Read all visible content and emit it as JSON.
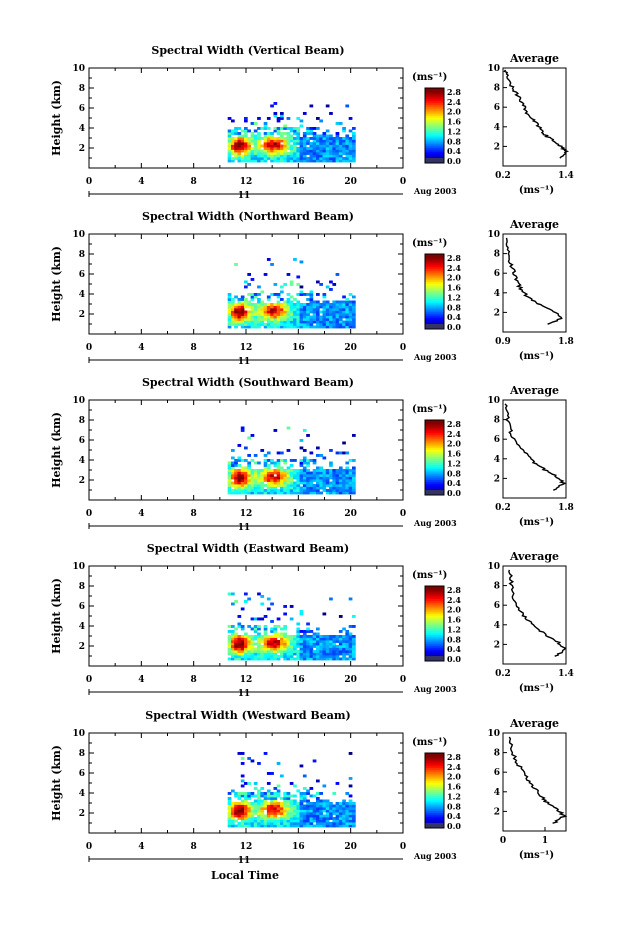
{
  "x_label": "Local Time",
  "date_label": "Aug 2003",
  "day_label": "11",
  "time_ticks": [
    "0",
    "4",
    "8",
    "12",
    "16",
    "20",
    "0"
  ],
  "height_label": "Height (km)",
  "height_ticks": [
    "2",
    "4",
    "6",
    "8",
    "10"
  ],
  "colorbar": {
    "unit": "(ms⁻¹)",
    "labels": [
      "2.8",
      "2.4",
      "2.0",
      "1.6",
      "1.2",
      "0.8",
      "0.4",
      "0.0"
    ]
  },
  "average_title": "Average",
  "average_unit": "(ms⁻¹)",
  "chart_data": [
    {
      "type": "heatmap",
      "title": "Spectral Width (Vertical Beam)",
      "xlabel": "Local Time",
      "ylabel": "Height (km)",
      "xlim": [
        0,
        24
      ],
      "ylim": [
        0,
        10
      ],
      "zlim": [
        0.0,
        2.8
      ],
      "data_extent": {
        "time": [
          10.6,
          20.3
        ],
        "height": [
          0.6,
          6.4
        ]
      },
      "average_profile": {
        "xlim": [
          0.2,
          1.4
        ],
        "xticks": [
          "0.2",
          "1.4"
        ],
        "ylim": [
          0,
          10
        ],
        "width": [
          1.3,
          1.42,
          1.3,
          1.15,
          1.0,
          0.9,
          0.85,
          0.7,
          0.62,
          0.55,
          0.45,
          0.35,
          0.28,
          0.25
        ],
        "height": [
          0.8,
          1.5,
          2.0,
          2.6,
          3.2,
          3.8,
          4.4,
          5.0,
          5.8,
          6.6,
          7.4,
          8.2,
          9.0,
          9.8
        ]
      }
    },
    {
      "type": "heatmap",
      "title": "Spectral Width (Northward Beam)",
      "xlabel": "Local Time",
      "ylabel": "Height (km)",
      "xlim": [
        0,
        24
      ],
      "ylim": [
        0,
        10
      ],
      "zlim": [
        0.0,
        2.8
      ],
      "data_extent": {
        "time": [
          10.6,
          20.3
        ],
        "height": [
          0.6,
          7.4
        ]
      },
      "average_profile": {
        "xlim": [
          0.9,
          1.8
        ],
        "xticks": [
          "0.9",
          "1.8"
        ],
        "ylim": [
          0,
          10
        ],
        "width": [
          1.55,
          1.75,
          1.6,
          1.4,
          1.25,
          1.15,
          1.1,
          1.05,
          1.0,
          0.97,
          0.95
        ],
        "height": [
          0.8,
          1.5,
          2.2,
          2.9,
          3.6,
          4.4,
          5.2,
          6.2,
          7.2,
          8.4,
          9.6
        ]
      }
    },
    {
      "type": "heatmap",
      "title": "Spectral Width (Southward Beam)",
      "xlabel": "Local Time",
      "ylabel": "Height (km)",
      "xlim": [
        0,
        24
      ],
      "ylim": [
        0,
        10
      ],
      "zlim": [
        0.0,
        2.8
      ],
      "data_extent": {
        "time": [
          10.6,
          20.3
        ],
        "height": [
          0.6,
          7.2
        ]
      },
      "average_profile": {
        "xlim": [
          0.2,
          1.8
        ],
        "xticks": [
          "0.2",
          "1.8"
        ],
        "ylim": [
          0,
          10
        ],
        "width": [
          1.5,
          1.75,
          1.55,
          1.25,
          1.0,
          0.8,
          0.6,
          0.45,
          0.35,
          0.3,
          0.25
        ],
        "height": [
          0.8,
          1.5,
          2.2,
          2.9,
          3.6,
          4.4,
          5.2,
          6.2,
          7.2,
          8.4,
          9.6
        ]
      }
    },
    {
      "type": "heatmap",
      "title": "Spectral Width (Eastward Beam)",
      "xlabel": "Local Time",
      "ylabel": "Height (km)",
      "xlim": [
        0,
        24
      ],
      "ylim": [
        0,
        10
      ],
      "zlim": [
        0.0,
        2.8
      ],
      "data_extent": {
        "time": [
          10.6,
          20.3
        ],
        "height": [
          0.6,
          7.2
        ]
      },
      "average_profile": {
        "xlim": [
          0.2,
          1.4
        ],
        "xticks": [
          "0.2",
          "1.4"
        ],
        "ylim": [
          0,
          10
        ],
        "width": [
          1.2,
          1.38,
          1.25,
          1.05,
          0.85,
          0.7,
          0.55,
          0.45,
          0.38,
          0.35,
          0.32
        ],
        "height": [
          0.8,
          1.5,
          2.2,
          2.9,
          3.6,
          4.4,
          5.2,
          6.2,
          7.2,
          8.4,
          9.6
        ]
      }
    },
    {
      "type": "heatmap",
      "title": "Spectral Width (Westward Beam)",
      "xlabel": "Local Time",
      "ylabel": "Height (km)",
      "xlim": [
        0,
        24
      ],
      "ylim": [
        0,
        10
      ],
      "zlim": [
        0.0,
        2.8
      ],
      "data_extent": {
        "time": [
          10.6,
          20.3
        ],
        "height": [
          0.6,
          8.0
        ]
      },
      "average_profile": {
        "xlim": [
          0,
          1.5
        ],
        "xticks": [
          "0",
          "1"
        ],
        "ylim": [
          0,
          10
        ],
        "width": [
          1.2,
          1.45,
          1.3,
          1.05,
          0.9,
          0.75,
          0.6,
          0.45,
          0.3,
          0.2,
          0.15
        ],
        "height": [
          0.8,
          1.5,
          2.2,
          2.9,
          3.6,
          4.4,
          5.2,
          6.2,
          7.2,
          8.4,
          9.6
        ]
      }
    }
  ]
}
